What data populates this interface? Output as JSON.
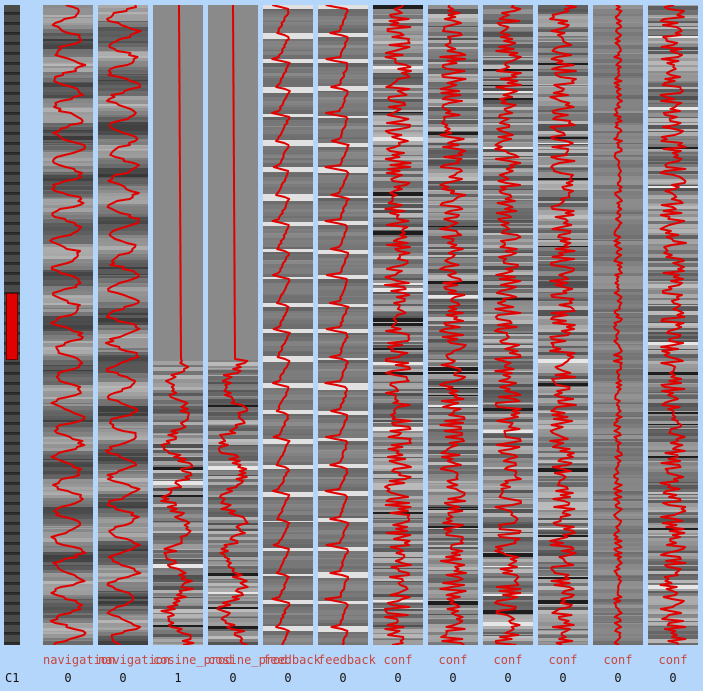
{
  "run_label": "C1",
  "columns": [
    {
      "label": "navigation",
      "value": "0",
      "style": "osc"
    },
    {
      "label": "navigation",
      "value": "0",
      "style": "osc"
    },
    {
      "label": "cosine_prod",
      "value": "1",
      "style": "flat"
    },
    {
      "label": "cosine_prod",
      "value": "0",
      "style": "flat"
    },
    {
      "label": "feedback",
      "value": "0",
      "style": "feedback"
    },
    {
      "label": "feedback",
      "value": "0",
      "style": "feedback"
    },
    {
      "label": "conf",
      "value": "0",
      "style": "noise"
    },
    {
      "label": "conf",
      "value": "0",
      "style": "noise"
    },
    {
      "label": "conf",
      "value": "0",
      "style": "noise"
    },
    {
      "label": "conf",
      "value": "0",
      "style": "noise"
    },
    {
      "label": "conf",
      "value": "0",
      "style": "calm"
    },
    {
      "label": "conf",
      "value": "0",
      "style": "noise"
    }
  ],
  "colors": {
    "background": "#b5d6fb",
    "trace": "#e00000",
    "label": "#c8463f",
    "value": "#111111"
  },
  "selection": {
    "start_fraction": 0.45,
    "end_fraction": 0.555
  }
}
